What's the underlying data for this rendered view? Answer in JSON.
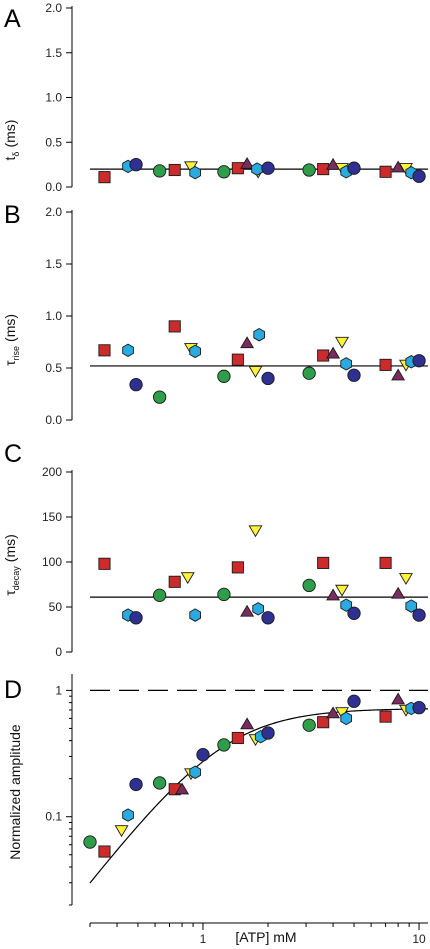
{
  "x_axis": {
    "label": "[ATP] mM",
    "ticks": [
      1,
      10
    ],
    "tick_labels": [
      "1",
      "10"
    ],
    "scale": "log",
    "range": [
      0.3,
      11
    ]
  },
  "colors": {
    "red": "#cc2b2b",
    "blue": "#2e3191",
    "green": "#2f9e4b",
    "cyan": "#29abe2",
    "yellow": "#fff23a",
    "purple": "#7b2c5e"
  },
  "marker_shapes": {
    "red": "square",
    "blue": "circle",
    "green": "circle",
    "cyan": "hexagon",
    "yellow": "triangle-down",
    "purple": "triangle-up"
  },
  "chart_data": [
    {
      "panel": "A",
      "type": "scatter",
      "ylabel": "t",
      "ylabel_sub": "δ",
      "ylabel_unit": "(ms)",
      "ylim": [
        0,
        2.0
      ],
      "yscale": "linear",
      "yticks": [
        0.0,
        0.5,
        1.0,
        1.5,
        2.0
      ],
      "ytick_labels": [
        "0.0",
        "0.5",
        "1.0",
        "1.5",
        "2.0"
      ],
      "reference_line": 0.2,
      "points": [
        {
          "x": 0.35,
          "y": 0.11,
          "c": "red"
        },
        {
          "x": 0.45,
          "y": 0.23,
          "c": "cyan"
        },
        {
          "x": 0.49,
          "y": 0.25,
          "c": "blue"
        },
        {
          "x": 0.63,
          "y": 0.18,
          "c": "green"
        },
        {
          "x": 0.74,
          "y": 0.19,
          "c": "red"
        },
        {
          "x": 0.88,
          "y": 0.23,
          "c": "yellow"
        },
        {
          "x": 0.92,
          "y": 0.16,
          "c": "cyan"
        },
        {
          "x": 1.25,
          "y": 0.17,
          "c": "green"
        },
        {
          "x": 1.45,
          "y": 0.21,
          "c": "red"
        },
        {
          "x": 1.6,
          "y": 0.26,
          "c": "purple"
        },
        {
          "x": 1.8,
          "y": 0.17,
          "c": "yellow"
        },
        {
          "x": 1.78,
          "y": 0.2,
          "c": "cyan"
        },
        {
          "x": 2.0,
          "y": 0.21,
          "c": "blue"
        },
        {
          "x": 3.1,
          "y": 0.19,
          "c": "green"
        },
        {
          "x": 3.6,
          "y": 0.2,
          "c": "red"
        },
        {
          "x": 4.0,
          "y": 0.25,
          "c": "purple"
        },
        {
          "x": 4.4,
          "y": 0.21,
          "c": "yellow"
        },
        {
          "x": 4.6,
          "y": 0.17,
          "c": "cyan"
        },
        {
          "x": 5.0,
          "y": 0.21,
          "c": "blue"
        },
        {
          "x": 7.0,
          "y": 0.17,
          "c": "red"
        },
        {
          "x": 8.0,
          "y": 0.22,
          "c": "purple"
        },
        {
          "x": 8.7,
          "y": 0.21,
          "c": "yellow"
        },
        {
          "x": 9.2,
          "y": 0.16,
          "c": "cyan"
        },
        {
          "x": 10.0,
          "y": 0.12,
          "c": "blue"
        }
      ]
    },
    {
      "panel": "B",
      "type": "scatter",
      "ylabel": "τ",
      "ylabel_sub": "rise",
      "ylabel_unit": "(ms)",
      "ylim": [
        0,
        2.0
      ],
      "yscale": "linear",
      "yticks": [
        0.0,
        0.5,
        1.0,
        1.5,
        2.0
      ],
      "ytick_labels": [
        "0.0",
        "0.5",
        "1.0",
        "1.5",
        "2.0"
      ],
      "reference_line": 0.52,
      "points": [
        {
          "x": 0.35,
          "y": 0.67,
          "c": "red"
        },
        {
          "x": 0.45,
          "y": 0.67,
          "c": "cyan"
        },
        {
          "x": 0.49,
          "y": 0.34,
          "c": "blue"
        },
        {
          "x": 0.63,
          "y": 0.22,
          "c": "green"
        },
        {
          "x": 0.74,
          "y": 0.9,
          "c": "red"
        },
        {
          "x": 0.88,
          "y": 0.69,
          "c": "yellow"
        },
        {
          "x": 0.92,
          "y": 0.66,
          "c": "cyan"
        },
        {
          "x": 1.25,
          "y": 0.42,
          "c": "green"
        },
        {
          "x": 1.45,
          "y": 0.58,
          "c": "red"
        },
        {
          "x": 1.6,
          "y": 0.74,
          "c": "purple"
        },
        {
          "x": 1.75,
          "y": 0.47,
          "c": "yellow"
        },
        {
          "x": 1.82,
          "y": 0.82,
          "c": "cyan"
        },
        {
          "x": 2.0,
          "y": 0.4,
          "c": "blue"
        },
        {
          "x": 3.1,
          "y": 0.45,
          "c": "green"
        },
        {
          "x": 3.6,
          "y": 0.62,
          "c": "red"
        },
        {
          "x": 4.0,
          "y": 0.64,
          "c": "purple"
        },
        {
          "x": 4.4,
          "y": 0.75,
          "c": "yellow"
        },
        {
          "x": 4.6,
          "y": 0.54,
          "c": "cyan"
        },
        {
          "x": 5.0,
          "y": 0.43,
          "c": "blue"
        },
        {
          "x": 7.0,
          "y": 0.53,
          "c": "red"
        },
        {
          "x": 8.0,
          "y": 0.43,
          "c": "purple"
        },
        {
          "x": 8.7,
          "y": 0.53,
          "c": "yellow"
        },
        {
          "x": 9.2,
          "y": 0.56,
          "c": "cyan"
        },
        {
          "x": 10.0,
          "y": 0.57,
          "c": "blue"
        }
      ]
    },
    {
      "panel": "C",
      "type": "scatter",
      "ylabel": "τ",
      "ylabel_sub": "decay",
      "ylabel_unit": "(ms)",
      "ylim": [
        0,
        200
      ],
      "yscale": "linear",
      "yticks": [
        0,
        50,
        100,
        150,
        200
      ],
      "ytick_labels": [
        "0",
        "50",
        "100",
        "150",
        "200"
      ],
      "reference_line": 61,
      "points": [
        {
          "x": 0.35,
          "y": 98,
          "c": "red"
        },
        {
          "x": 0.45,
          "y": 41,
          "c": "cyan"
        },
        {
          "x": 0.49,
          "y": 38,
          "c": "blue"
        },
        {
          "x": 0.63,
          "y": 63,
          "c": "green"
        },
        {
          "x": 0.74,
          "y": 78,
          "c": "red"
        },
        {
          "x": 0.85,
          "y": 83,
          "c": "yellow"
        },
        {
          "x": 0.92,
          "y": 41,
          "c": "cyan"
        },
        {
          "x": 1.25,
          "y": 64,
          "c": "green"
        },
        {
          "x": 1.45,
          "y": 94,
          "c": "red"
        },
        {
          "x": 1.6,
          "y": 45,
          "c": "purple"
        },
        {
          "x": 1.75,
          "y": 135,
          "c": "yellow"
        },
        {
          "x": 1.8,
          "y": 48,
          "c": "cyan"
        },
        {
          "x": 2.0,
          "y": 38,
          "c": "blue"
        },
        {
          "x": 3.1,
          "y": 74,
          "c": "green"
        },
        {
          "x": 3.6,
          "y": 99,
          "c": "red"
        },
        {
          "x": 4.0,
          "y": 63,
          "c": "purple"
        },
        {
          "x": 4.4,
          "y": 69,
          "c": "yellow"
        },
        {
          "x": 4.6,
          "y": 52,
          "c": "cyan"
        },
        {
          "x": 5.0,
          "y": 43,
          "c": "blue"
        },
        {
          "x": 7.0,
          "y": 99,
          "c": "red"
        },
        {
          "x": 8.0,
          "y": 65,
          "c": "purple"
        },
        {
          "x": 8.7,
          "y": 82,
          "c": "yellow"
        },
        {
          "x": 9.2,
          "y": 51,
          "c": "cyan"
        },
        {
          "x": 10.0,
          "y": 41,
          "c": "blue"
        }
      ]
    },
    {
      "panel": "D",
      "type": "scatter",
      "ylabel": "Normalized amplitude",
      "ylim": [
        0.02,
        1.3
      ],
      "yscale": "log",
      "yticks": [
        0.1,
        1
      ],
      "ytick_labels": [
        "0.1",
        "1"
      ],
      "dashed_line": 1.0,
      "fit": {
        "ymax": 0.72,
        "ec50": 1.25,
        "hill": 2.2
      },
      "points": [
        {
          "x": 0.3,
          "y": 0.063,
          "c": "green"
        },
        {
          "x": 0.35,
          "y": 0.053,
          "c": "red"
        },
        {
          "x": 0.42,
          "y": 0.078,
          "c": "yellow"
        },
        {
          "x": 0.45,
          "y": 0.103,
          "c": "cyan"
        },
        {
          "x": 0.49,
          "y": 0.18,
          "c": "blue"
        },
        {
          "x": 0.63,
          "y": 0.185,
          "c": "green"
        },
        {
          "x": 0.74,
          "y": 0.165,
          "c": "red"
        },
        {
          "x": 0.8,
          "y": 0.165,
          "c": "purple"
        },
        {
          "x": 0.88,
          "y": 0.22,
          "c": "yellow"
        },
        {
          "x": 0.92,
          "y": 0.225,
          "c": "cyan"
        },
        {
          "x": 1.0,
          "y": 0.31,
          "c": "blue"
        },
        {
          "x": 1.25,
          "y": 0.37,
          "c": "green"
        },
        {
          "x": 1.45,
          "y": 0.42,
          "c": "red"
        },
        {
          "x": 1.6,
          "y": 0.54,
          "c": "purple"
        },
        {
          "x": 1.75,
          "y": 0.41,
          "c": "yellow"
        },
        {
          "x": 1.85,
          "y": 0.43,
          "c": "cyan"
        },
        {
          "x": 2.0,
          "y": 0.46,
          "c": "blue"
        },
        {
          "x": 3.1,
          "y": 0.53,
          "c": "green"
        },
        {
          "x": 3.6,
          "y": 0.56,
          "c": "red"
        },
        {
          "x": 4.0,
          "y": 0.66,
          "c": "purple"
        },
        {
          "x": 4.4,
          "y": 0.67,
          "c": "yellow"
        },
        {
          "x": 4.6,
          "y": 0.6,
          "c": "cyan"
        },
        {
          "x": 5.0,
          "y": 0.82,
          "c": "blue"
        },
        {
          "x": 7.0,
          "y": 0.62,
          "c": "red"
        },
        {
          "x": 8.0,
          "y": 0.85,
          "c": "purple"
        },
        {
          "x": 8.7,
          "y": 0.7,
          "c": "yellow"
        },
        {
          "x": 9.2,
          "y": 0.72,
          "c": "cyan"
        },
        {
          "x": 10.0,
          "y": 0.73,
          "c": "blue"
        }
      ]
    }
  ]
}
